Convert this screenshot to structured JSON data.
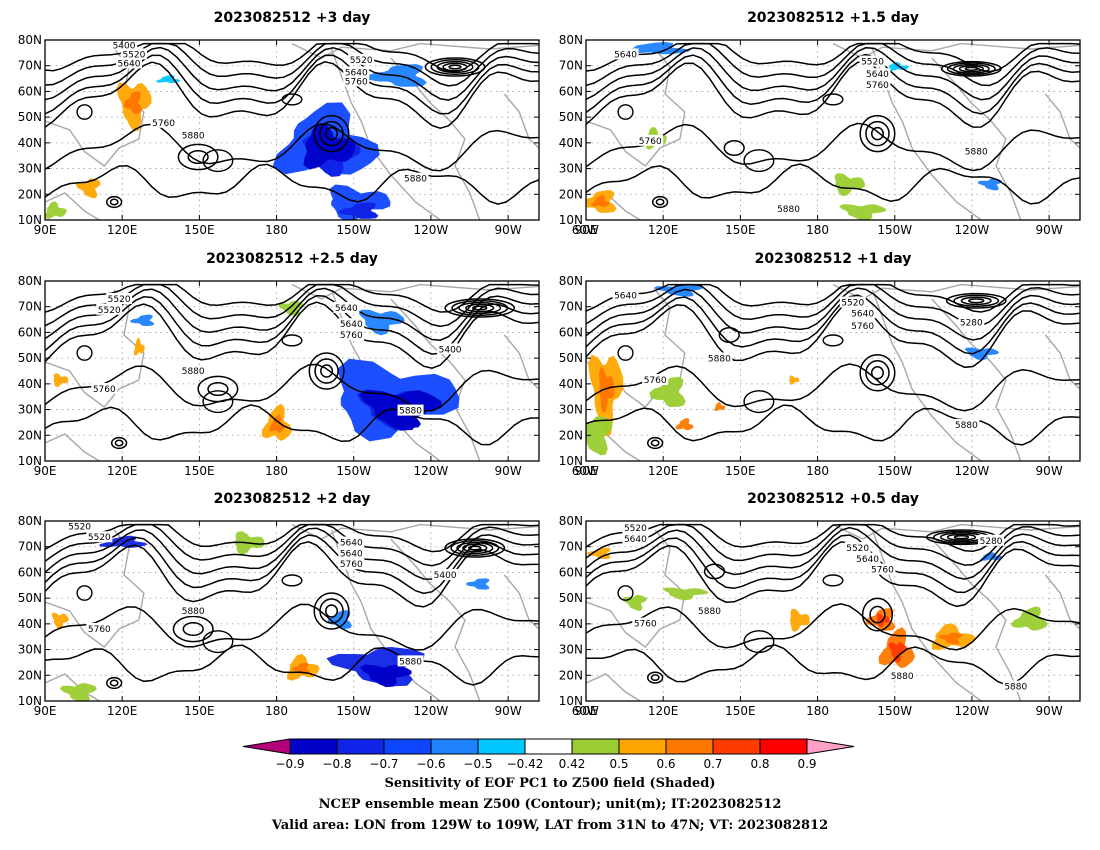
{
  "panels": [
    {
      "title": "2023082512  +3 day",
      "labels": [
        "5400",
        "5520",
        "5640",
        "5520",
        "5640",
        "5760",
        "5760",
        "5880",
        "5880"
      ]
    },
    {
      "title": "2023082512  +1.5 day",
      "labels": [
        "5640",
        "5520",
        "5640",
        "5760",
        "5760",
        "5880",
        "5880"
      ]
    },
    {
      "title": "2023082512  +2.5 day",
      "labels": [
        "5520",
        "5640",
        "5520",
        "5640",
        "5760",
        "5400",
        "5880",
        "5760",
        "5880"
      ]
    },
    {
      "title": "2023082512  +1 day",
      "labels": [
        "5640",
        "5520",
        "5640",
        "5760",
        "5280",
        "5760",
        "5880",
        "5880"
      ]
    },
    {
      "title": "2023082512  +2 day",
      "labels": [
        "5520",
        "5640",
        "5520",
        "5640",
        "5760",
        "5400",
        "5880",
        "5760",
        "5880"
      ]
    },
    {
      "title": "2023082512  +0.5 day",
      "labels": [
        "5520",
        "5640",
        "5520",
        "5640",
        "5760",
        "5280",
        "5880",
        "5760",
        "5880",
        "5880"
      ]
    }
  ],
  "lat_ticks": [
    "80N",
    "70N",
    "60N",
    "50N",
    "40N",
    "30N",
    "20N",
    "10N"
  ],
  "lon_ticks": [
    "90E",
    "120E",
    "150E",
    "180",
    "150W",
    "120W",
    "90W",
    "60W"
  ],
  "colorbar": {
    "labels": [
      "−0.9",
      "−0.8",
      "−0.7",
      "−0.6",
      "−0.5",
      "−0.42",
      "0.42",
      "0.5",
      "0.6",
      "0.7",
      "0.8",
      "0.9"
    ],
    "colors": [
      "#b4007a",
      "#0000c8",
      "#0f24e6",
      "#0f46ff",
      "#1e82ff",
      "#00c8ff",
      "#ffffff",
      "#9acd32",
      "#ffa500",
      "#ff7800",
      "#ff3c00",
      "#ff0000",
      "#ffa0c8"
    ]
  },
  "caption": {
    "line1": "Sensitivity of EOF PC1 to Z500 field (Shaded)",
    "line2": "NCEP ensemble mean Z500 (Contour); unit(m); IT:2023082512",
    "line3": "Valid area: LON from 129W to 109W, LAT from 31N to 47N; VT: 2023082812"
  }
}
